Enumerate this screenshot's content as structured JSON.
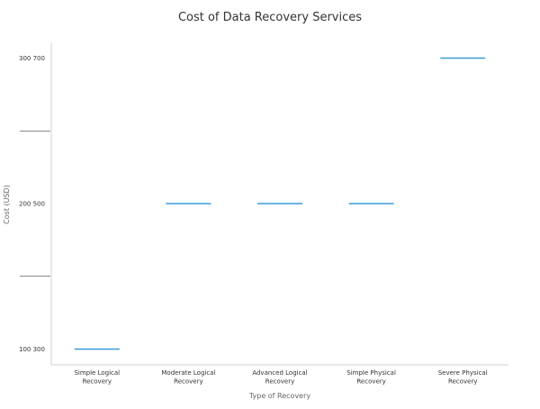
{
  "chart_data": {
    "type": "box",
    "title": "Cost of Data Recovery Services",
    "xlabel": "Type of Recovery",
    "ylabel": "Cost (USD)",
    "categories": [
      "Simple Logical\nRecovery",
      "Moderate Logical\nRecovery",
      "Advanced Logical\nRecovery",
      "Simple Physical\nRecovery",
      "Severe Physical\nRecovery"
    ],
    "series": [
      {
        "values": [
          300,
          500,
          500,
          500,
          700
        ]
      }
    ],
    "y_tick_labels": [
      "100   300",
      "200   500",
      "300   700"
    ],
    "y_tick_values": [
      300,
      500,
      700
    ],
    "ylim": [
      300,
      700
    ],
    "grid": false,
    "colors": {
      "line": "#3a9ad9",
      "axis": "#d0d0d0",
      "divider": "#888888"
    }
  }
}
